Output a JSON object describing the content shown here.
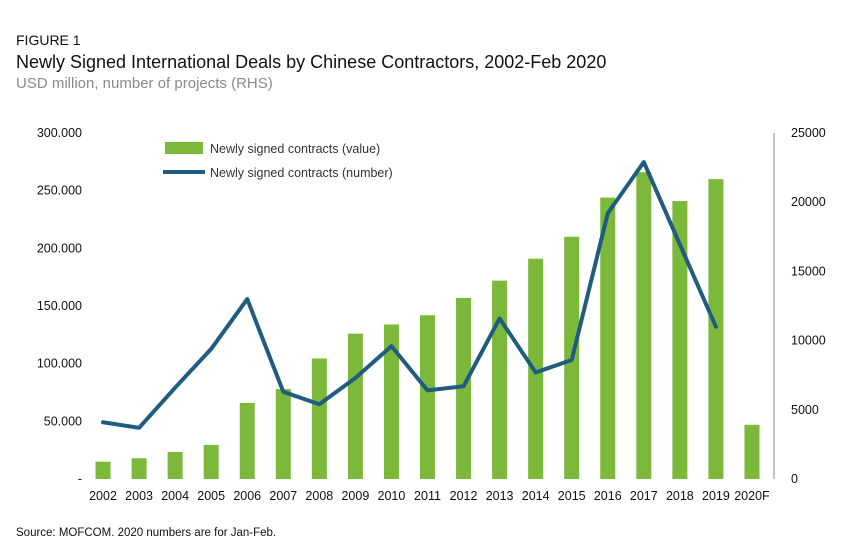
{
  "figure_label": "FIGURE 1",
  "source_note": "Source: MOFCOM. 2020 numbers are for Jan-Feb.",
  "colors": {
    "bar": "#7cb83a",
    "line": "#1f5c80",
    "axis": "#888888"
  },
  "chart_data": {
    "type": "bar",
    "title": "Newly Signed International Deals by Chinese Contractors, 2002-Feb 2020",
    "subtitle": "USD million, number of projects (RHS)",
    "categories": [
      "2002",
      "2003",
      "2004",
      "2005",
      "2006",
      "2007",
      "2008",
      "2009",
      "2010",
      "2011",
      "2012",
      "2013",
      "2014",
      "2015",
      "2016",
      "2017",
      "2018",
      "2019",
      "2020F"
    ],
    "left_axis": {
      "ylim": [
        0,
        300000
      ],
      "ticks": [
        0,
        50000,
        100000,
        150000,
        200000,
        250000,
        300000
      ],
      "tick_labels": [
        "-",
        "50.000",
        "100.000",
        "150.000",
        "200.000",
        "250.000",
        "300.000"
      ]
    },
    "right_axis": {
      "ylim": [
        0,
        25000
      ],
      "ticks": [
        0,
        5000,
        10000,
        15000,
        20000,
        25000
      ],
      "tick_labels": [
        "0",
        "5000",
        "10000",
        "15000",
        "20000",
        "25000"
      ]
    },
    "legend_position": "top-left",
    "grid": false,
    "series": [
      {
        "name": "Newly signed contracts (value)",
        "type": "bar",
        "axis": "left",
        "values": [
          15000,
          18000,
          23500,
          29500,
          66000,
          78000,
          104500,
          126000,
          134000,
          142000,
          157000,
          172000,
          191000,
          210000,
          244000,
          266000,
          241000,
          260000,
          47000
        ]
      },
      {
        "name": "Newly signed contracts (number)",
        "type": "line",
        "axis": "right",
        "values": [
          4100,
          3700,
          6600,
          9400,
          13000,
          6300,
          5400,
          7300,
          9600,
          6400,
          6700,
          11600,
          7700,
          8600,
          19200,
          22900,
          null,
          11000,
          null
        ]
      }
    ]
  }
}
